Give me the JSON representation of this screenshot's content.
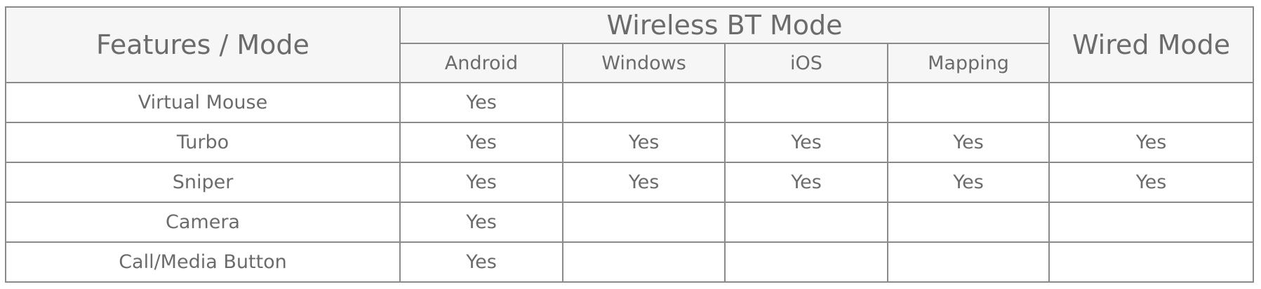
{
  "header": {
    "features_label": "Features / Mode",
    "wireless_label": "Wireless BT Mode",
    "wired_label": "Wired Mode",
    "wireless_modes": [
      "Android",
      "Windows",
      "iOS",
      "Mapping"
    ]
  },
  "rows": [
    {
      "feature": "Virtual Mouse",
      "values": [
        "Yes",
        "",
        "",
        "",
        ""
      ]
    },
    {
      "feature": "Turbo",
      "values": [
        "Yes",
        "Yes",
        "Yes",
        "Yes",
        "Yes"
      ]
    },
    {
      "feature": "Sniper",
      "values": [
        "Yes",
        "Yes",
        "Yes",
        "Yes",
        "Yes"
      ]
    },
    {
      "feature": "Camera",
      "values": [
        "Yes",
        "",
        "",
        "",
        ""
      ]
    },
    {
      "feature": "Call/Media Button",
      "values": [
        "Yes",
        "",
        "",
        "",
        ""
      ]
    }
  ]
}
